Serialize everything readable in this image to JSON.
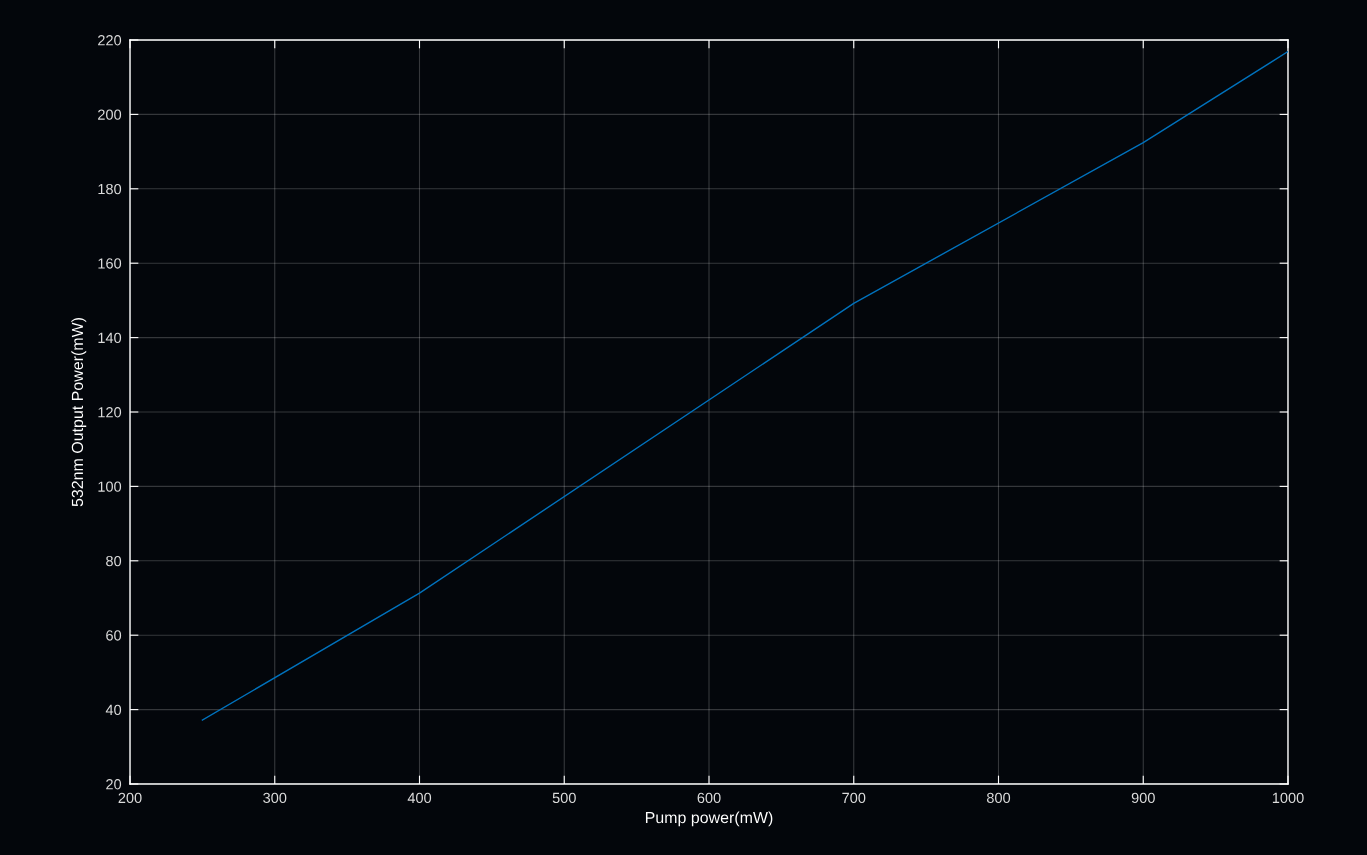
{
  "chart_data": {
    "type": "line",
    "xlabel": "Pump power(mW)",
    "ylabel": "532nm Output Power(mW)",
    "x": [
      250,
      400,
      700,
      900,
      1000
    ],
    "series": [
      {
        "color": "#0072bd",
        "values": [
          37.2,
          71.3,
          149.2,
          192.4,
          216.9
        ]
      }
    ],
    "xlim": [
      200,
      1000
    ],
    "ylim": [
      20,
      220
    ],
    "xticks": [
      200,
      300,
      400,
      500,
      600,
      700,
      800,
      900,
      1000
    ],
    "yticks": [
      20,
      40,
      60,
      80,
      100,
      120,
      140,
      160,
      180,
      200,
      220
    ],
    "grid": true,
    "line_style": "solid"
  }
}
